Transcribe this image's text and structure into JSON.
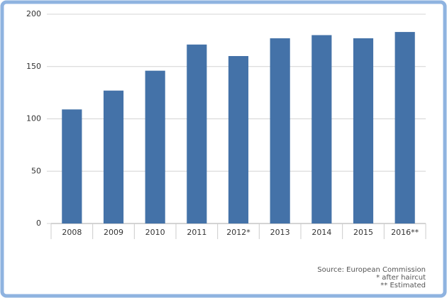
{
  "chart_data": {
    "type": "bar",
    "categories": [
      "2008",
      "2009",
      "2010",
      "2011",
      "2012*",
      "2013",
      "2014",
      "2015",
      "2016**"
    ],
    "values": [
      109,
      127,
      146,
      171,
      160,
      177,
      180,
      177,
      183
    ],
    "color": "#4472a8",
    "ylim": [
      0,
      200
    ],
    "yticks": [
      0,
      50,
      100,
      150,
      200
    ],
    "grid": true,
    "notes": [
      "Source: European Commission",
      "* after haircut",
      "** Estimated"
    ]
  }
}
